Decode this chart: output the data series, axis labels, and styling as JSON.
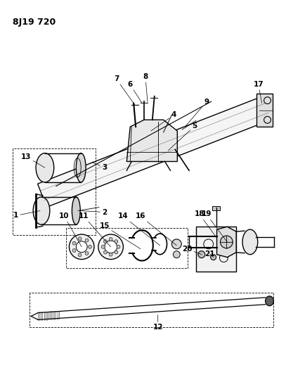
{
  "title": "8J19 720",
  "bg_color": "#ffffff",
  "line_color": "#000000",
  "title_fontsize": 9,
  "label_fontsize": 7.5
}
